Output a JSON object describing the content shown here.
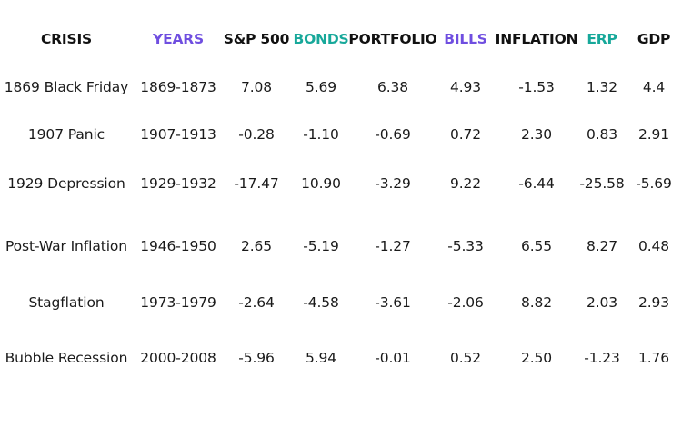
{
  "chart_data": {
    "type": "table",
    "header_colors": {
      "default": "#111111",
      "purple": "#6f4ee0",
      "teal": "#17a89a"
    },
    "columns": [
      {
        "label": "CRISIS",
        "color": "default"
      },
      {
        "label": "YEARS",
        "color": "purple"
      },
      {
        "label": "S&P 500",
        "color": "default"
      },
      {
        "label": "BONDS",
        "color": "teal"
      },
      {
        "label": "PORTFOLIO",
        "color": "default"
      },
      {
        "label": "BILLS",
        "color": "purple"
      },
      {
        "label": "INFLATION",
        "color": "default"
      },
      {
        "label": "ERP",
        "color": "teal"
      },
      {
        "label": "GDP",
        "color": "default"
      }
    ],
    "rows": [
      [
        "1869 Black Friday",
        "1869-1873",
        "7.08",
        "5.69",
        "6.38",
        "4.93",
        "-1.53",
        "1.32",
        "4.4"
      ],
      [
        "1907 Panic",
        "1907-1913",
        "-0.28",
        "-1.10",
        "-0.69",
        "0.72",
        "2.30",
        "0.83",
        "2.91"
      ],
      [
        "1929 Depression",
        "1929-1932",
        "-17.47",
        "10.90",
        "-3.29",
        "9.22",
        "-6.44",
        "-25.58",
        "-5.69"
      ],
      [
        "Post-War Inflation",
        "1946-1950",
        "2.65",
        "-5.19",
        "-1.27",
        "-5.33",
        "6.55",
        "8.27",
        "0.48"
      ],
      [
        "Stagflation",
        "1973-1979",
        "-2.64",
        "-4.58",
        "-3.61",
        "-2.06",
        "8.82",
        "2.03",
        "2.93"
      ],
      [
        "Bubble Recession",
        "2000-2008",
        "-5.96",
        "5.94",
        "-0.01",
        "0.52",
        "2.50",
        "-1.23",
        "1.76"
      ]
    ]
  }
}
